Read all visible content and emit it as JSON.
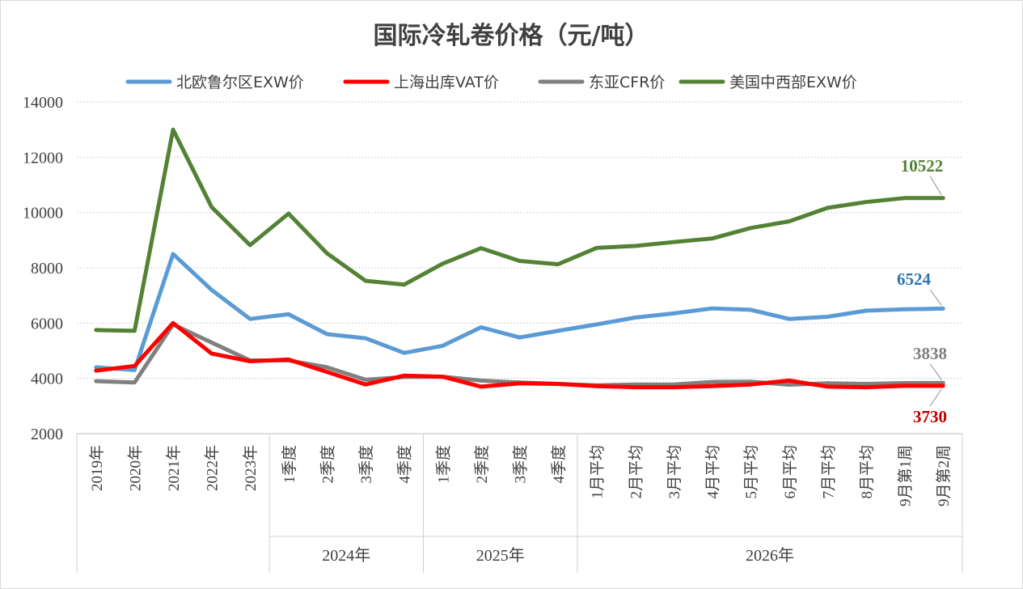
{
  "chart_data": {
    "type": "line",
    "title": "国际冷轧卷价格（元/吨）",
    "ylim": [
      2000,
      14000
    ],
    "yticks": [
      2000,
      4000,
      6000,
      8000,
      10000,
      12000,
      14000
    ],
    "grid": true,
    "legend_position": "top",
    "categories": [
      "2019年",
      "2020年",
      "2021年",
      "2022年",
      "2023年",
      "1季度",
      "2季度",
      "3季度",
      "4季度",
      "1季度",
      "2季度",
      "3季度",
      "4季度",
      "1月平均",
      "2月平均",
      "3月平均",
      "4月平均",
      "5月平均",
      "6月平均",
      "7月平均",
      "8月平均",
      "9月第1周",
      "9月第2周"
    ],
    "groups": [
      {
        "label": "2024年",
        "start": 5,
        "end": 8
      },
      {
        "label": "2025年",
        "start": 9,
        "end": 12
      },
      {
        "label": "2026年",
        "start": 13,
        "end": 22
      }
    ],
    "series": [
      {
        "name": "北欧鲁尔区EXW价",
        "color": "#5B9BD5",
        "label_color": "#2E75B6",
        "values": [
          4400,
          4300,
          8500,
          7200,
          6150,
          6320,
          5600,
          5450,
          4920,
          5180,
          5850,
          5480,
          5720,
          5950,
          6200,
          6350,
          6530,
          6480,
          6150,
          6230,
          6450,
          6500,
          6524
        ],
        "end_label": "6524"
      },
      {
        "name": "上海出库VAT价",
        "color": "#FF0000",
        "label_color": "#C00000",
        "values": [
          4280,
          4450,
          6000,
          4900,
          4620,
          4680,
          4230,
          3780,
          4100,
          4060,
          3700,
          3820,
          3800,
          3720,
          3680,
          3680,
          3720,
          3780,
          3920,
          3700,
          3680,
          3730,
          3730
        ],
        "end_label": "3730"
      },
      {
        "name": "东亚CFR价",
        "color": "#808080",
        "label_color": "#7F7F7F",
        "values": [
          3900,
          3850,
          5950,
          5300,
          4650,
          4650,
          4400,
          3950,
          4050,
          4060,
          3920,
          3850,
          3800,
          3750,
          3780,
          3780,
          3870,
          3880,
          3770,
          3820,
          3800,
          3830,
          3838
        ],
        "end_label": "3838"
      },
      {
        "name": "美国中西部EXW价",
        "color": "#548235",
        "label_color": "#548235",
        "values": [
          5750,
          5720,
          13000,
          10200,
          8820,
          9960,
          8520,
          7530,
          7390,
          8150,
          8710,
          8250,
          8130,
          8720,
          8790,
          8930,
          9060,
          9440,
          9680,
          10170,
          10380,
          10522,
          10522
        ],
        "end_label": "10522"
      }
    ]
  }
}
